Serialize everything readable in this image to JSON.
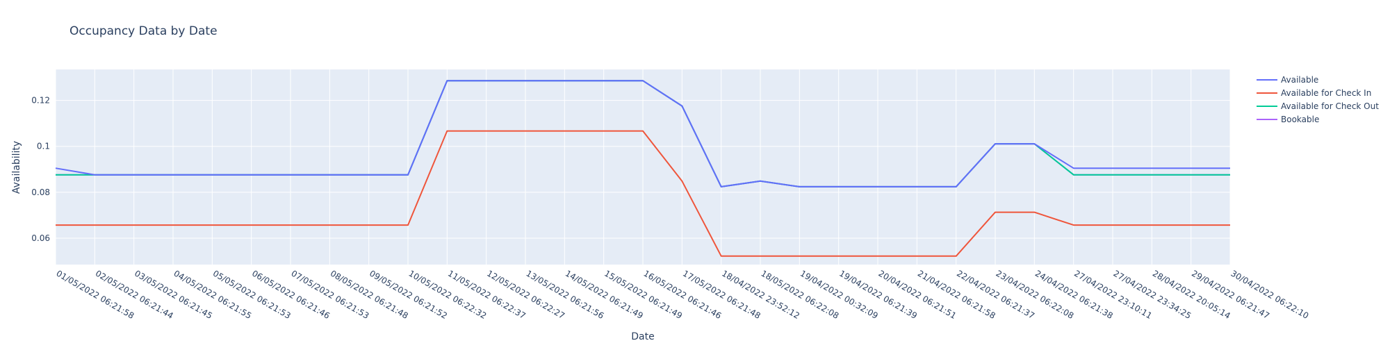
{
  "chart_data": {
    "type": "line",
    "title": "Occupancy Data by Date",
    "xlabel": "Date",
    "ylabel": "Availability",
    "x": [
      "01/05/2022 06:21:58",
      "02/05/2022 06:21:44",
      "03/05/2022 06:21:45",
      "04/05/2022 06:21:55",
      "05/05/2022 06:21:53",
      "06/05/2022 06:21:46",
      "07/05/2022 06:21:53",
      "08/05/2022 06:21:48",
      "09/05/2022 06:21:52",
      "10/05/2022 06:22:32",
      "11/05/2022 06:22:37",
      "12/05/2022 06:22:27",
      "13/05/2022 06:21:56",
      "14/05/2022 06:21:49",
      "15/05/2022 06:21:49",
      "16/05/2022 06:21:46",
      "17/05/2022 06:21:48",
      "18/04/2022 23:52:12",
      "18/05/2022 06:22:08",
      "19/04/2022 00:32:09",
      "19/04/2022 06:21:39",
      "20/04/2022 06:21:51",
      "21/04/2022 06:21:58",
      "22/04/2022 06:21:37",
      "23/04/2022 06:22:08",
      "24/04/2022 06:21:38",
      "27/04/2022 23:10:11",
      "27/04/2022 23:34:25",
      "28/04/2022 20:05:14",
      "29/04/2022 06:21:47",
      "30/04/2022 06:22:10"
    ],
    "yticks": [
      0.06,
      0.08,
      0.1,
      0.12
    ],
    "yticklabels": [
      "0.06",
      "0.08",
      "0.1",
      "0.12"
    ],
    "ylim": [
      0.0485,
      0.1335
    ],
    "grid": true,
    "legend_placement": "top-right, outside plot",
    "series": [
      {
        "name": "Available",
        "color": "#636efa",
        "values": [
          0.0905,
          0.0876,
          0.0876,
          0.0876,
          0.0876,
          0.0876,
          0.0876,
          0.0876,
          0.0876,
          0.0876,
          0.1286,
          0.1286,
          0.1286,
          0.1286,
          0.1286,
          0.1286,
          0.1176,
          0.0824,
          0.0849,
          0.0824,
          0.0824,
          0.0824,
          0.0824,
          0.0824,
          0.1011,
          0.1011,
          0.0905,
          0.0905,
          0.0905,
          0.0905,
          0.0905
        ]
      },
      {
        "name": "Available for Check In",
        "color": "#EF553B",
        "values": [
          0.0657,
          0.0657,
          0.0657,
          0.0657,
          0.0657,
          0.0657,
          0.0657,
          0.0657,
          0.0657,
          0.0657,
          0.1067,
          0.1067,
          0.1067,
          0.1067,
          0.1067,
          0.1067,
          0.0849,
          0.0522,
          0.0522,
          0.0522,
          0.0522,
          0.0522,
          0.0522,
          0.0522,
          0.0713,
          0.0713,
          0.0657,
          0.0657,
          0.0657,
          0.0657,
          0.0657
        ]
      },
      {
        "name": "Available for Check Out",
        "color": "#00cc96",
        "values": [
          0.0876,
          0.0876,
          0.0876,
          0.0876,
          0.0876,
          0.0876,
          0.0876,
          0.0876,
          0.0876,
          0.0876,
          0.1286,
          0.1286,
          0.1286,
          0.1286,
          0.1286,
          0.1286,
          0.1176,
          0.0824,
          0.0849,
          0.0824,
          0.0824,
          0.0824,
          0.0824,
          0.0824,
          0.1011,
          0.1011,
          0.0876,
          0.0876,
          0.0876,
          0.0876,
          0.0876
        ]
      },
      {
        "name": "Bookable",
        "color": "#ab63fa",
        "values": [
          0.0876,
          0.0876,
          0.0876,
          0.0876,
          0.0876,
          0.0876,
          0.0876,
          0.0876,
          0.0876,
          0.0876,
          0.1286,
          0.1286,
          0.1286,
          0.1286,
          0.1286,
          0.1286,
          0.1176,
          0.0824,
          0.0849,
          0.0824,
          0.0824,
          0.0824,
          0.0824,
          0.0824,
          0.1011,
          0.1011,
          0.0876,
          0.0876,
          0.0876,
          0.0876,
          0.0876
        ]
      }
    ]
  }
}
